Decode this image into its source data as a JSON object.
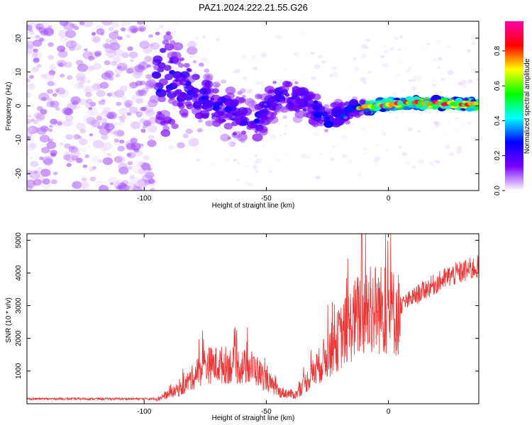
{
  "title": "PAZ1.2024.222.21.55.G26",
  "chart_data": [
    {
      "type": "heatmap",
      "name": "spectrogram",
      "xlabel": "Height of straight line (km)",
      "ylabel": "Frequency (Hz)",
      "xlim": [
        -148,
        37
      ],
      "ylim": [
        -25,
        25
      ],
      "xticks": [
        -100,
        -50,
        0
      ],
      "yticks": [
        -20,
        -10,
        0,
        10,
        20
      ],
      "colorbar": {
        "label": "Normalized spectral amplitude",
        "range": [
          0,
          0.97
        ],
        "ticks": [
          "0.0",
          "0.2",
          "0.4",
          "0.6",
          "0.8"
        ],
        "tick_values": [
          0.0,
          0.2,
          0.4,
          0.6,
          0.8
        ],
        "stops": [
          "#ffffff",
          "#7b00ff",
          "#0000ff",
          "#00ffff",
          "#00ff00",
          "#ffff00",
          "#ff0000",
          "#ff00aa"
        ]
      },
      "ridge": [
        {
          "x": -148,
          "f": 0,
          "spread": 25
        },
        {
          "x": -90,
          "f": 8,
          "spread": 14
        },
        {
          "x": -80,
          "f": 4,
          "spread": 8
        },
        {
          "x": -70,
          "f": 0,
          "spread": 6
        },
        {
          "x": -55,
          "f": -5,
          "spread": 5
        },
        {
          "x": -45,
          "f": 3,
          "spread": 4
        },
        {
          "x": -35,
          "f": 2,
          "spread": 4
        },
        {
          "x": -25,
          "f": -4,
          "spread": 3
        },
        {
          "x": -15,
          "f": -1,
          "spread": 2
        },
        {
          "x": -5,
          "f": 0,
          "spread": 1
        },
        {
          "x": 10,
          "f": 1,
          "spread": 0.8
        },
        {
          "x": 37,
          "f": 0.5,
          "spread": 0.8
        }
      ]
    },
    {
      "type": "line",
      "name": "snr",
      "xlabel": "Height of straight line (km)",
      "ylabel": "SNR (10 * v/v)",
      "xlim": [
        -148,
        37
      ],
      "ylim": [
        0,
        5200
      ],
      "xticks": [
        -100,
        -50,
        0
      ],
      "yticks": [
        1000,
        2000,
        3000,
        4000,
        5000
      ],
      "color": "#ee3333",
      "envelope": [
        {
          "x": -148,
          "y": 150
        },
        {
          "x": -95,
          "y": 150
        },
        {
          "x": -85,
          "y": 500
        },
        {
          "x": -75,
          "y": 1300
        },
        {
          "x": -65,
          "y": 1300
        },
        {
          "x": -55,
          "y": 1200
        },
        {
          "x": -45,
          "y": 400
        },
        {
          "x": -38,
          "y": 300
        },
        {
          "x": -30,
          "y": 1100
        },
        {
          "x": -20,
          "y": 2200
        },
        {
          "x": -12,
          "y": 3000
        },
        {
          "x": -5,
          "y": 3200
        },
        {
          "x": 5,
          "y": 3000
        },
        {
          "x": 15,
          "y": 3500
        },
        {
          "x": 25,
          "y": 3900
        },
        {
          "x": 37,
          "y": 4200
        }
      ]
    }
  ]
}
